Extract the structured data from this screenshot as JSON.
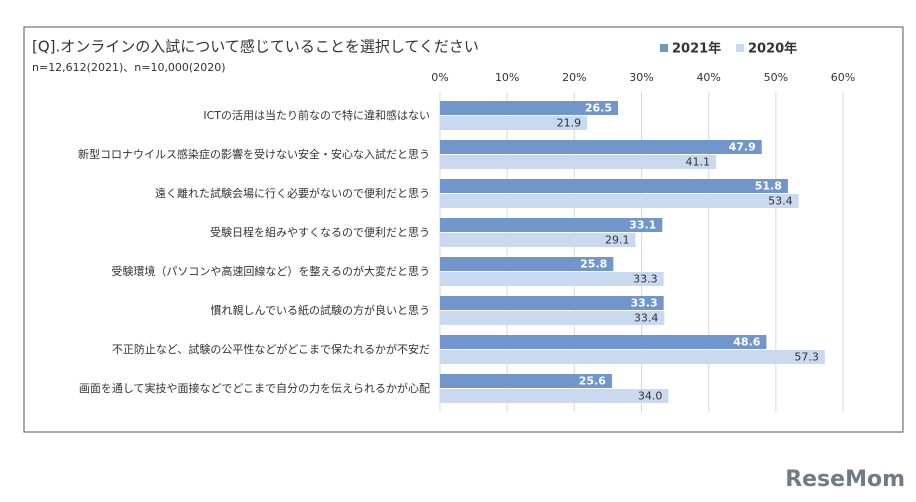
{
  "chart_data": {
    "type": "hbar",
    "title": "[Q].オンラインの入試について感じていることを選択してください",
    "subtitle": "n=12,612(2021)、n=10,000(2020)",
    "categories": [
      "ICTの活用は当たり前なので特に違和感はない",
      "新型コロナウイルス感染症の影響を受けない安全・安心な入試だと思う",
      "遠く離れた試験会場に行く必要がないので便利だと思う",
      "受験日程を組みやすくなるので便利だと思う",
      "受験環境（パソコンや高速回線など）を整えるのが大変だと思う",
      "慣れ親しんでいる紙の試験の方が良いと思う",
      "不正防止など、試験の公平性などがどこまで保たれるかが不安だ",
      "画面を通して実技や面接などでどこまで自分の力を伝えられるかが心配"
    ],
    "series": [
      {
        "name": "2021年",
        "color": "#7196cb",
        "values": [
          26.5,
          47.9,
          51.8,
          33.1,
          25.8,
          33.3,
          48.6,
          25.6
        ],
        "value_labels": [
          "26.5",
          "47.9",
          "51.8",
          "33.1",
          "25.8",
          "33.3",
          "48.6",
          "25.6"
        ]
      },
      {
        "name": "2020年",
        "color": "#c9d9ef",
        "values": [
          21.9,
          41.1,
          53.4,
          29.1,
          33.3,
          33.4,
          57.3,
          34.0
        ],
        "value_labels": [
          "21.9",
          "41.1",
          "53.4",
          "29.1",
          "33.3",
          "33.4",
          "57.3",
          "34.0"
        ]
      }
    ],
    "xlim": [
      0,
      60
    ],
    "xticks": [
      {
        "value": 0,
        "label": "0%"
      },
      {
        "value": 10,
        "label": "10%"
      },
      {
        "value": 20,
        "label": "20%"
      },
      {
        "value": 30,
        "label": "30%"
      },
      {
        "value": 40,
        "label": "40%"
      },
      {
        "value": 50,
        "label": "50%"
      },
      {
        "value": 60,
        "label": "60%"
      }
    ],
    "grid": true
  },
  "watermark": "ReseMom"
}
